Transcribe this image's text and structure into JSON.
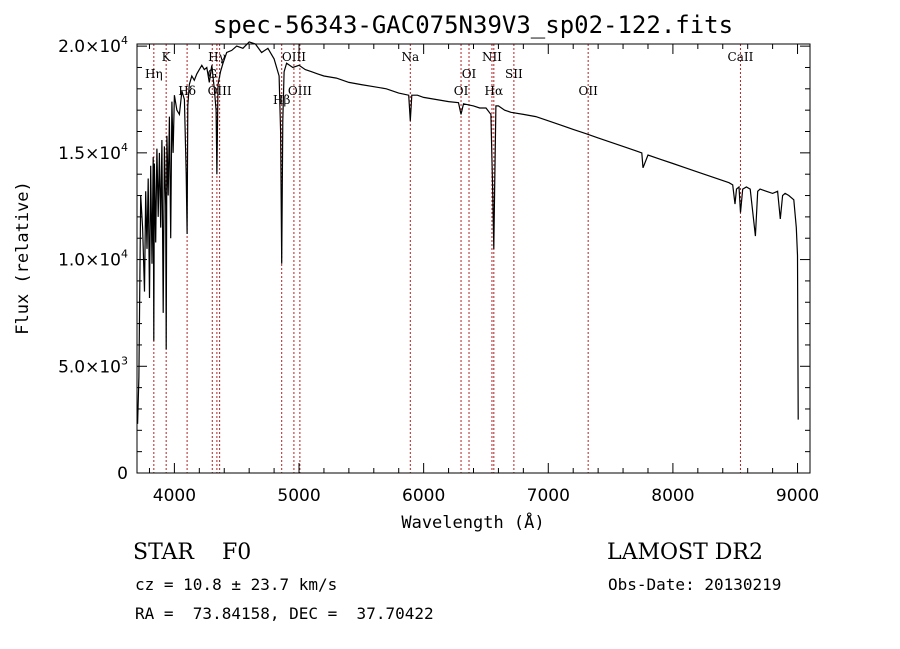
{
  "chart_data": {
    "type": "line",
    "title": "spec-56343-GAC075N39V3_sp02-122.fits",
    "xlabel": "Wavelength (Å)",
    "ylabel": "Flux (relative)",
    "xlim": [
      3700,
      9100
    ],
    "ylim": [
      0,
      20100
    ],
    "xticks": [
      {
        "value": 4000,
        "label": "4000"
      },
      {
        "value": 5000,
        "label": "5000"
      },
      {
        "value": 6000,
        "label": "6000"
      },
      {
        "value": 7000,
        "label": "7000"
      },
      {
        "value": 8000,
        "label": "8000"
      },
      {
        "value": 9000,
        "label": "9000"
      }
    ],
    "yticks": [
      {
        "value": 0,
        "mant": "0",
        "exp": ""
      },
      {
        "value": 5000,
        "mant": "5.0×10",
        "exp": "3"
      },
      {
        "value": 10000,
        "mant": "1.0×10",
        "exp": "4"
      },
      {
        "value": 15000,
        "mant": "1.5×10",
        "exp": "4"
      },
      {
        "value": 20000,
        "mant": "2.0×10",
        "exp": "4"
      }
    ],
    "lines": [
      {
        "label": "Hη",
        "wavelength": 3835,
        "row": 2
      },
      {
        "label": "K",
        "wavelength": 3934,
        "row": 1
      },
      {
        "label": "Hδ",
        "wavelength": 4102,
        "row": 4
      },
      {
        "label": "Hγ",
        "wavelength": 4341,
        "row": 1
      },
      {
        "label": "G",
        "wavelength": 4304,
        "row": 2
      },
      {
        "label": "OIII",
        "wavelength": 4363,
        "row": 4
      },
      {
        "label": "Hβ",
        "wavelength": 4861,
        "row": 3
      },
      {
        "label": "OIII",
        "wavelength": 4959,
        "row": 1
      },
      {
        "label": "OIII",
        "wavelength": 5007,
        "row": 4
      },
      {
        "label": "Na",
        "wavelength": 5893,
        "row": 1
      },
      {
        "label": "OI",
        "wavelength": 6300,
        "row": 4
      },
      {
        "label": "OI",
        "wavelength": 6364,
        "row": 2
      },
      {
        "label": "NII",
        "wavelength": 6548,
        "row": 1
      },
      {
        "label": "Hα",
        "wavelength": 6563,
        "row": 4
      },
      {
        "label": "SII",
        "wavelength": 6724,
        "row": 2
      },
      {
        "label": "OII",
        "wavelength": 7320,
        "row": 4
      },
      {
        "label": "CaII",
        "wavelength": 8542,
        "row": 1
      }
    ],
    "series": [
      {
        "x": [
          3705,
          3715,
          3730,
          3745,
          3760,
          3770,
          3780,
          3790,
          3800,
          3810,
          3820,
          3830,
          3835,
          3840,
          3850,
          3860,
          3870,
          3880,
          3890,
          3900,
          3910,
          3920,
          3930,
          3934,
          3940,
          3950,
          3960,
          3970,
          3980,
          3990,
          4000,
          4020,
          4040,
          4060,
          4080,
          4095,
          4102,
          4108,
          4120,
          4140,
          4160,
          4180,
          4200,
          4220,
          4240,
          4260,
          4280,
          4300,
          4320,
          4335,
          4341,
          4350,
          4370,
          4390,
          4420,
          4460,
          4500,
          4550,
          4600,
          4650,
          4700,
          4750,
          4800,
          4840,
          4852,
          4861,
          4870,
          4880,
          4900,
          4950,
          5000,
          5050,
          5100,
          5150,
          5200,
          5300,
          5400,
          5500,
          5600,
          5700,
          5800,
          5880,
          5893,
          5905,
          5950,
          6000,
          6100,
          6200,
          6280,
          6300,
          6320,
          6400,
          6450,
          6500,
          6540,
          6555,
          6563,
          6570,
          6580,
          6600,
          6650,
          6700,
          6800,
          6900,
          7000,
          7100,
          7200,
          7300,
          7400,
          7500,
          7600,
          7700,
          7750,
          7760,
          7800,
          7900,
          8000,
          8100,
          8200,
          8300,
          8400,
          8450,
          8480,
          8498,
          8510,
          8530,
          8542,
          8560,
          8590,
          8620,
          8662,
          8680,
          8700,
          8750,
          8800,
          8840,
          8862,
          8880,
          8900,
          8930,
          8970,
          8990,
          9000,
          9005
        ],
        "y": [
          2300,
          4500,
          13000,
          11500,
          8500,
          13200,
          10500,
          13800,
          8200,
          14400,
          9800,
          14800,
          6200,
          14500,
          10800,
          15200,
          12000,
          15000,
          11500,
          15600,
          7500,
          15300,
          12500,
          5800,
          15800,
          13000,
          16700,
          11000,
          17400,
          15000,
          17700,
          17000,
          16800,
          17900,
          17500,
          14000,
          11200,
          17200,
          18200,
          18600,
          18400,
          18700,
          18900,
          19100,
          18900,
          19000,
          18300,
          19100,
          18000,
          17000,
          14000,
          18200,
          18800,
          19200,
          19700,
          19800,
          20000,
          19900,
          20200,
          20100,
          19700,
          19900,
          19400,
          18600,
          16000,
          9800,
          16500,
          18800,
          19200,
          19000,
          19100,
          18900,
          18800,
          18700,
          18600,
          18500,
          18300,
          18200,
          18100,
          18000,
          17800,
          17700,
          16500,
          17700,
          17700,
          17600,
          17500,
          17400,
          17350,
          16800,
          17300,
          17200,
          17100,
          17100,
          16800,
          13000,
          10500,
          13500,
          17200,
          17200,
          17000,
          16900,
          16800,
          16700,
          16500,
          16300,
          16100,
          15900,
          15700,
          15500,
          15300,
          15100,
          15000,
          14300,
          14900,
          14700,
          14500,
          14300,
          14100,
          13900,
          13700,
          13600,
          13500,
          12600,
          13300,
          13400,
          12200,
          13300,
          13400,
          13300,
          11100,
          13200,
          13300,
          13200,
          13100,
          13200,
          11900,
          13000,
          13100,
          13000,
          12800,
          11500,
          10200,
          2500
        ]
      }
    ]
  },
  "info": {
    "object": "STAR    F0",
    "survey": "LAMOST DR2",
    "velocity": "cz = 10.8 ± 23.7 km/s",
    "obs_date": "Obs-Date: 20130219",
    "coords": "RA =  73.84158, DEC =  37.70422"
  }
}
